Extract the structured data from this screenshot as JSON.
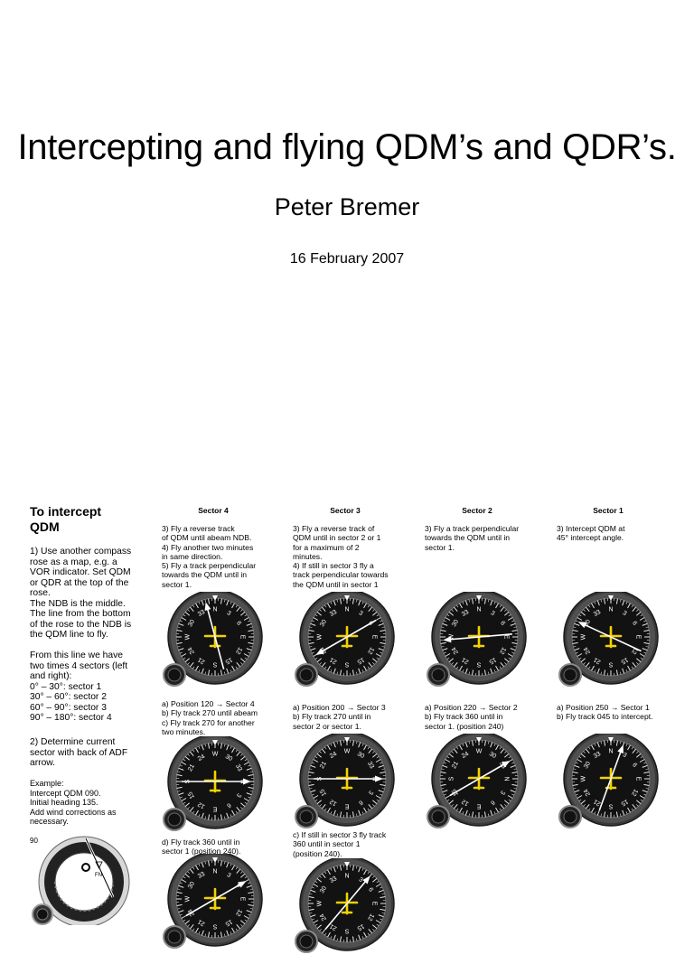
{
  "title": "Intercepting and flying QDM’s and QDR’s.",
  "author": "Peter Bremer",
  "date": "16 February 2007",
  "intro": {
    "heading": [
      "To intercept",
      "QDM"
    ],
    "para1": [
      "1) Use another compass",
      "rose as a map, e.g. a",
      "VOR indicator. Set QDM",
      "or QDR at the top of the",
      "rose.",
      "The NDB is the middle.",
      "The line from the bottom",
      "of the rose to the NDB is",
      "the QDM line to fly."
    ],
    "para2": [
      "From this line we have",
      "two times 4 sectors (left",
      "and right):",
      "0° – 30°: sector 1",
      "30° – 60°: sector 2",
      "60° – 90°: sector 3",
      "90° – 180°: sector 4"
    ],
    "para3": [
      "2) Determine current",
      "sector with back of ADF",
      "arrow."
    ],
    "para4": [
      "Example:",
      "Intercept QDM 090.",
      "Initial heading 135.",
      "Add wind corrections as",
      "necessary."
    ],
    "small_label": "90"
  },
  "sectors": [
    {
      "title": "Sector 4",
      "step3": [
        "3) Fly a reverse track",
        "of QDM until abeam NDB.",
        "4) Fly another two minutes",
        "in same direction.",
        "5) Fly a track perpendicular",
        "towards the QDM until in",
        "sector 1."
      ],
      "stepA": [
        "a) Position 120 → Sector 4",
        "b) Fly track 270 until abeam",
        "c) Fly track 270 for another",
        "two minutes."
      ],
      "stepD": [
        "d) Fly track 360 until in",
        "sector 1 (position 240)."
      ]
    },
    {
      "title": "Sector 3",
      "step3": [
        "3) Fly a reverse track of",
        "QDM until in sector 2 or 1",
        "for a maximum of 2",
        "minutes.",
        "4) If still in sector 3 fly a",
        "track perpendicular towards",
        "the QDM until in sector 1"
      ],
      "stepA": [
        "a) Position 200 → Sector 3",
        "b) Fly track 270 until in",
        "sector 2 or sector 1."
      ],
      "stepC": [
        "c) If still in sector 3 fly track",
        "360 until in sector 1",
        "(position 240)."
      ]
    },
    {
      "title": "Sector 2",
      "step3": [
        "3) Fly a track perpendicular",
        "towards the QDM until in",
        "sector 1."
      ],
      "stepA": [
        "a) Position 220 → Sector 2",
        "b) Fly track 360 until in",
        "sector 1. (position 240)"
      ]
    },
    {
      "title": "Sector 1",
      "step3": [
        "3) Intercept QDM at",
        "45° intercept angle."
      ],
      "stepA": [
        "a) Position 250 → Sector 1",
        "b) Fly track 045 to intercept."
      ]
    }
  ],
  "instruments": [
    {
      "id": "s4-top",
      "rose": 0,
      "needle": -15,
      "plane": 0
    },
    {
      "id": "s3-top",
      "rose": 0,
      "needle": 240,
      "plane": 0
    },
    {
      "id": "s2-top",
      "rose": 0,
      "needle": 265,
      "plane": 0
    },
    {
      "id": "s1-top",
      "rose": 0,
      "needle": 295,
      "plane": 0
    },
    {
      "id": "s4-mid",
      "rose": 270,
      "needle": 90,
      "plane": 270
    },
    {
      "id": "s3-mid",
      "rose": 270,
      "needle": 90,
      "plane": 270
    },
    {
      "id": "s2-mid",
      "rose": 270,
      "needle": 60,
      "plane": 270
    },
    {
      "id": "s1-mid",
      "rose": 0,
      "needle": 20,
      "plane": 0
    },
    {
      "id": "s4-bot",
      "rose": 0,
      "needle": 60,
      "plane": 0
    },
    {
      "id": "s3-bot",
      "rose": 0,
      "needle": 40,
      "plane": 0
    }
  ],
  "rose_labels": [
    "N",
    "3",
    "6",
    "E",
    "12",
    "15",
    "S",
    "21",
    "24",
    "W",
    "30",
    "33"
  ],
  "small_instrument": {
    "mark": "FN"
  }
}
